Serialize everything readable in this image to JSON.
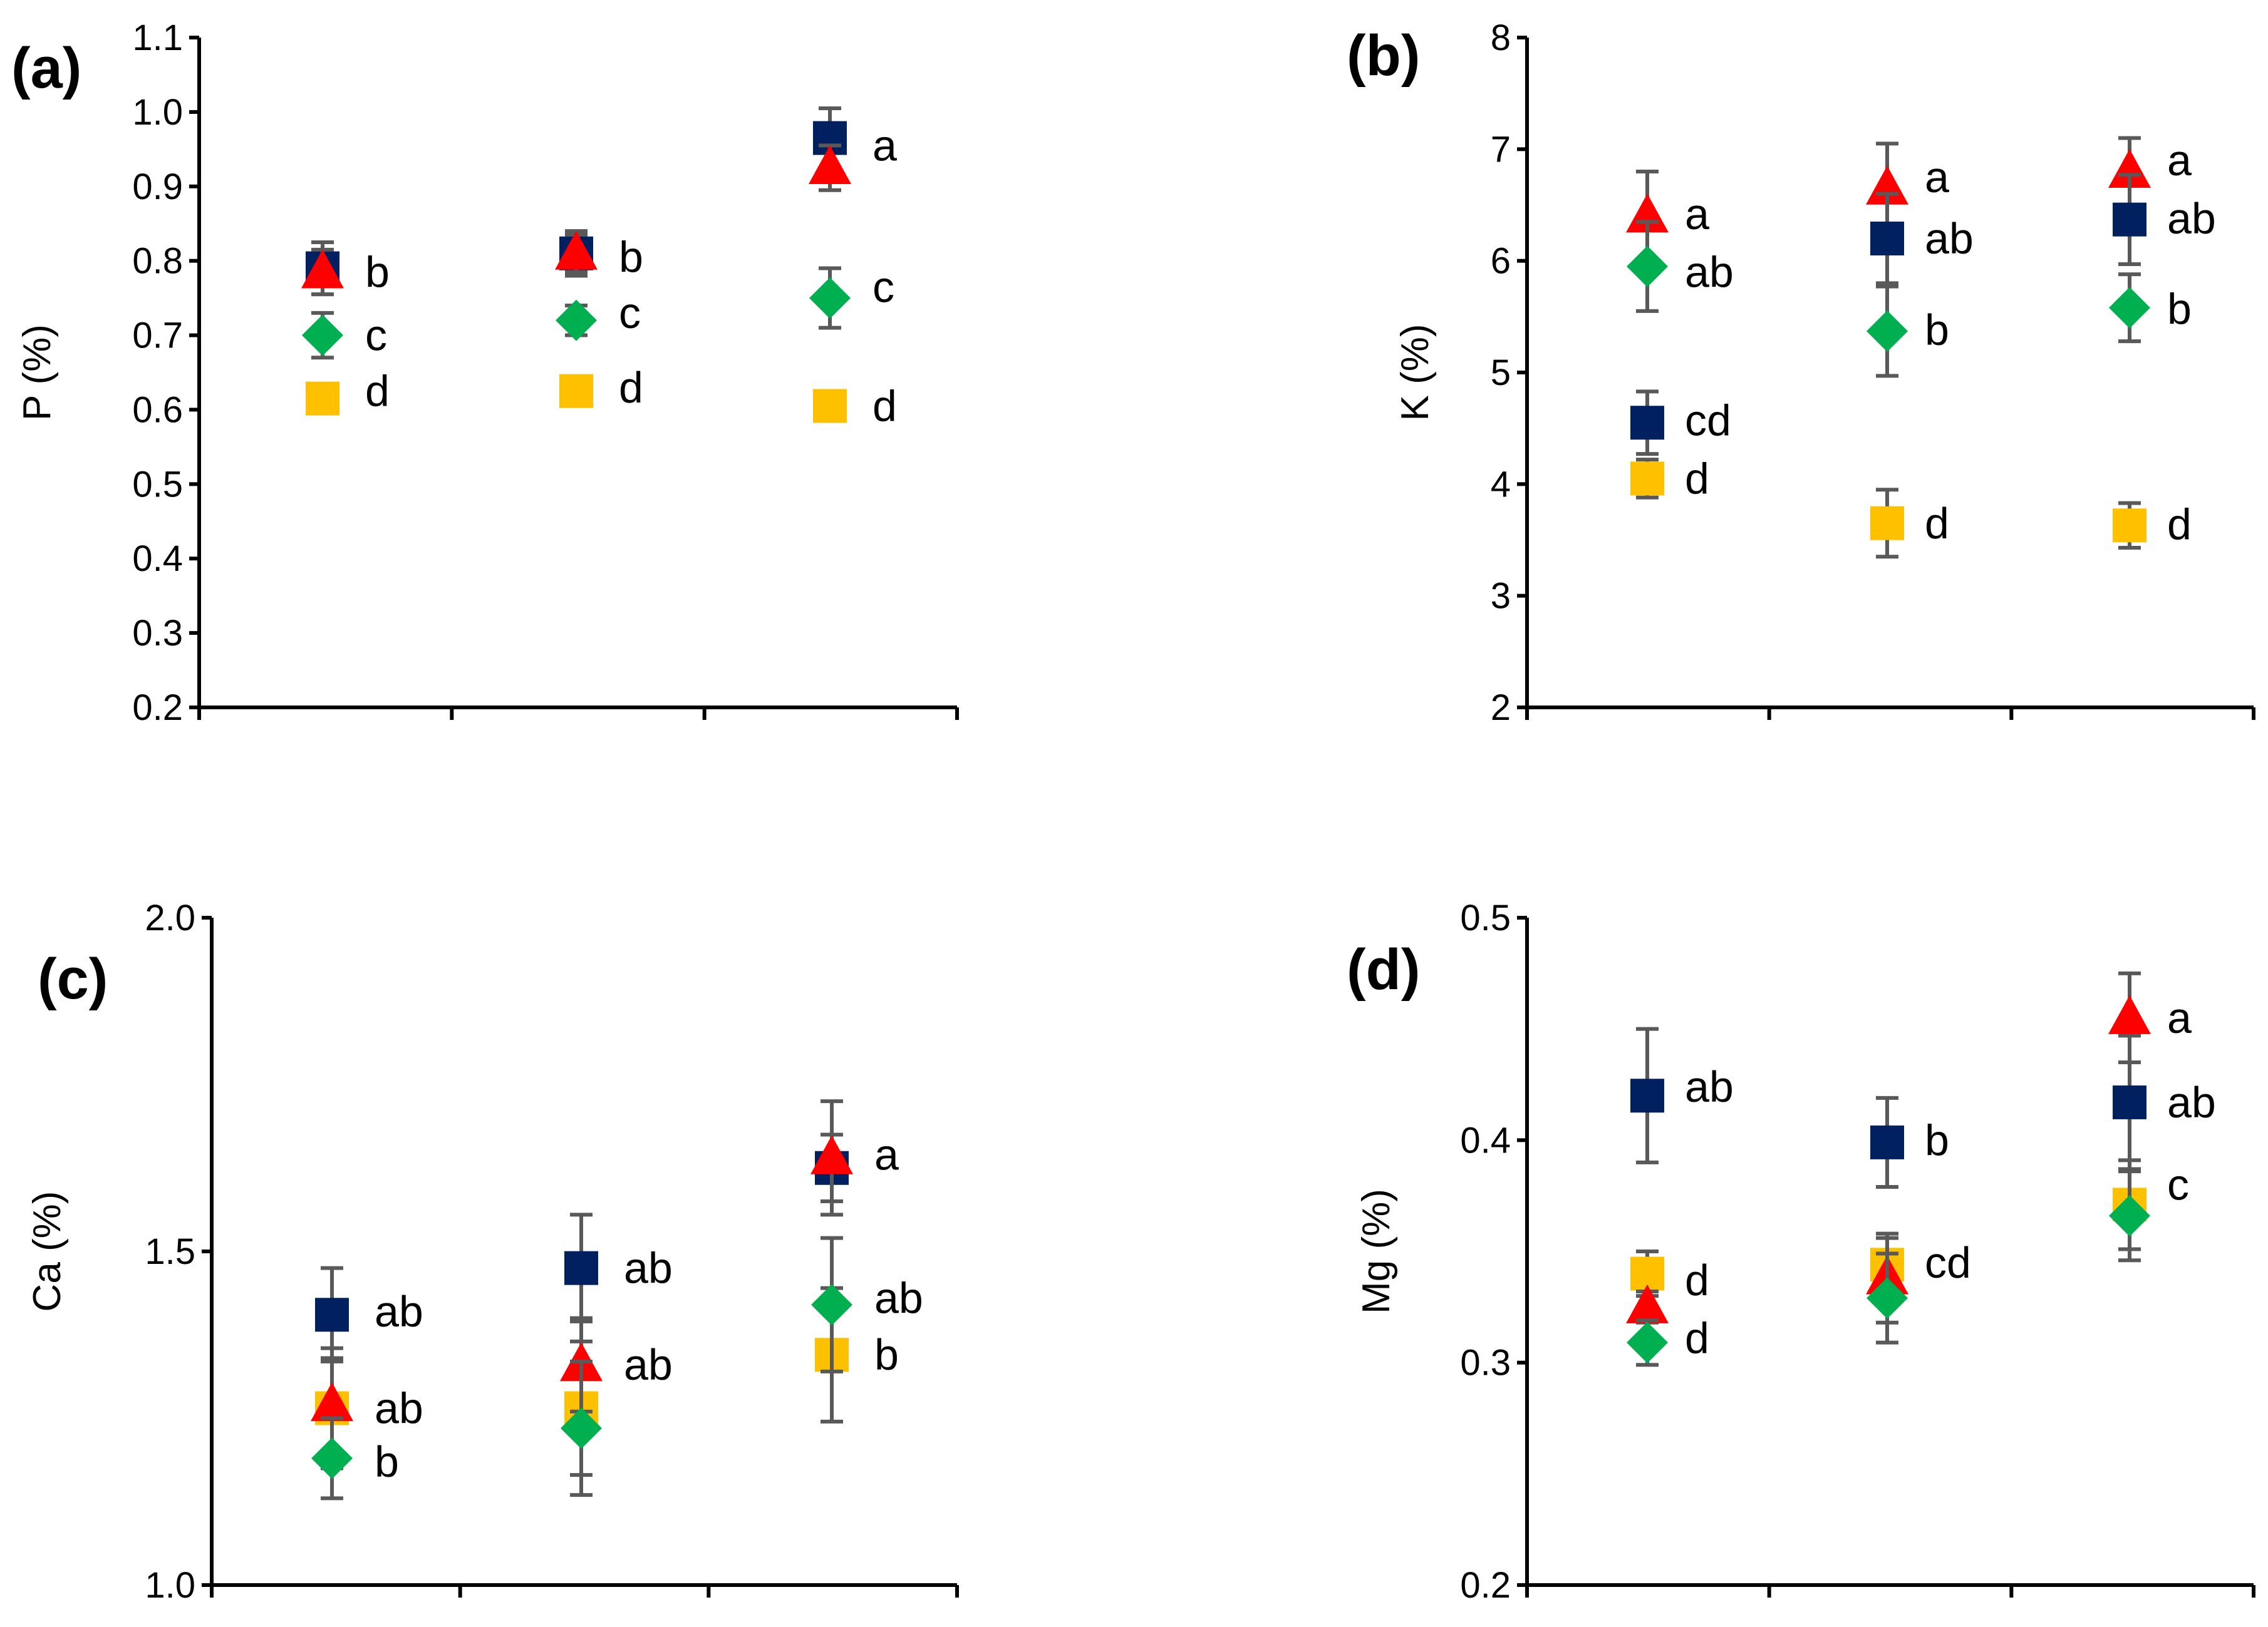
{
  "colors": {
    "navy": "#002060",
    "red": "#FF0000",
    "green": "#00B050",
    "yellow": "#FFC000",
    "errorbar": "#595959"
  },
  "chart_data": [
    {
      "type": "scatter",
      "panel_label": "(a)",
      "ylabel": "P (%)",
      "xlabel": "",
      "ylim": [
        0.2,
        1.1
      ],
      "yticks": [
        0.2,
        0.3,
        0.4,
        0.5,
        0.6,
        0.7,
        0.8,
        0.9,
        1.0,
        1.1
      ],
      "ytick_labels": [
        "0.2",
        "0.3",
        "0.4",
        "0.5",
        "0.6",
        "0.7",
        "0.8",
        "0.9",
        "1.0",
        "1.1"
      ],
      "groups": 3,
      "series": [
        {
          "name": "navy-square",
          "marker": "square",
          "color": "#002060",
          "values": [
            0.79,
            0.81,
            0.965
          ],
          "errors": [
            0.035,
            0.03,
            0.04
          ]
        },
        {
          "name": "red-triangle",
          "marker": "triangle",
          "color": "#FF0000",
          "values": [
            0.785,
            0.81,
            0.925
          ],
          "errors": [
            0.03,
            0.025,
            0.03
          ]
        },
        {
          "name": "green-diamond",
          "marker": "diamond",
          "color": "#00B050",
          "values": [
            0.7,
            0.72,
            0.75
          ],
          "errors": [
            0.03,
            0.02,
            0.04
          ]
        },
        {
          "name": "yellow-square",
          "marker": "square",
          "color": "#FFC000",
          "values": [
            0.615,
            0.625,
            0.605
          ],
          "errors": [
            0,
            0,
            0
          ]
        }
      ],
      "letters": [
        {
          "text": "b",
          "group": 0,
          "y": 0.785
        },
        {
          "text": "c",
          "group": 0,
          "y": 0.7
        },
        {
          "text": "d",
          "group": 0,
          "y": 0.625
        },
        {
          "text": "b",
          "group": 1,
          "y": 0.805
        },
        {
          "text": "c",
          "group": 1,
          "y": 0.73
        },
        {
          "text": "d",
          "group": 1,
          "y": 0.63
        },
        {
          "text": "a",
          "group": 2,
          "y": 0.955
        },
        {
          "text": "c",
          "group": 2,
          "y": 0.765
        },
        {
          "text": "d",
          "group": 2,
          "y": 0.605
        }
      ]
    },
    {
      "type": "scatter",
      "panel_label": "(b)",
      "ylabel": "K (%)",
      "xlabel": "",
      "ylim": [
        2,
        8
      ],
      "yticks": [
        2,
        3,
        4,
        5,
        6,
        7,
        8
      ],
      "ytick_labels": [
        "2",
        "3",
        "4",
        "5",
        "6",
        "7",
        "8"
      ],
      "groups": 3,
      "series": [
        {
          "name": "red-triangle",
          "marker": "triangle",
          "color": "#FF0000",
          "values": [
            6.4,
            6.65,
            6.8
          ],
          "errors": [
            0.4,
            0.4,
            0.3
          ]
        },
        {
          "name": "navy-square",
          "marker": "square",
          "color": "#002060",
          "values": [
            4.55,
            6.2,
            6.37
          ],
          "errors": [
            0.28,
            0.4,
            0.4
          ]
        },
        {
          "name": "green-diamond",
          "marker": "diamond",
          "color": "#00B050",
          "values": [
            5.95,
            5.37,
            5.58
          ],
          "errors": [
            0.4,
            0.4,
            0.3
          ]
        },
        {
          "name": "yellow-square",
          "marker": "square",
          "color": "#FFC000",
          "values": [
            4.05,
            3.65,
            3.63
          ],
          "errors": [
            0.17,
            0.3,
            0.2
          ]
        }
      ],
      "letters": [
        {
          "text": "a",
          "group": 0,
          "y": 6.42
        },
        {
          "text": "ab",
          "group": 0,
          "y": 5.9
        },
        {
          "text": "cd",
          "group": 0,
          "y": 4.57
        },
        {
          "text": "d",
          "group": 0,
          "y": 4.05
        },
        {
          "text": "a",
          "group": 1,
          "y": 6.75
        },
        {
          "text": "ab",
          "group": 1,
          "y": 6.2
        },
        {
          "text": "b",
          "group": 1,
          "y": 5.38
        },
        {
          "text": "d",
          "group": 1,
          "y": 3.65
        },
        {
          "text": "a",
          "group": 2,
          "y": 6.9
        },
        {
          "text": "ab",
          "group": 2,
          "y": 6.38
        },
        {
          "text": "b",
          "group": 2,
          "y": 5.57
        },
        {
          "text": "d",
          "group": 2,
          "y": 3.64
        }
      ]
    },
    {
      "type": "scatter",
      "panel_label": "(c)",
      "ylabel": "Ca (%)",
      "xlabel": "",
      "ylim": [
        1.0,
        2.0
      ],
      "yticks": [
        1.0,
        1.5,
        2.0
      ],
      "ytick_labels": [
        "1.0",
        "1.5",
        "2.0"
      ],
      "groups": 3,
      "series": [
        {
          "name": "navy-square",
          "marker": "square",
          "color": "#002060",
          "values": [
            1.405,
            1.475,
            1.625
          ],
          "errors": [
            0.07,
            0.08,
            0.05
          ]
        },
        {
          "name": "yellow-square",
          "marker": "square",
          "color": "#FFC000",
          "values": [
            1.265,
            1.265,
            1.345
          ],
          "errors": [
            0.09,
            0.1,
            0.1
          ]
        },
        {
          "name": "red-triangle",
          "marker": "triangle",
          "color": "#FF0000",
          "values": [
            1.27,
            1.33,
            1.64
          ],
          "errors": [
            0.07,
            0.07,
            0.085
          ]
        },
        {
          "name": "green-diamond",
          "marker": "diamond",
          "color": "#00B050",
          "values": [
            1.19,
            1.235,
            1.42
          ],
          "errors": [
            0.06,
            0.1,
            0.1
          ]
        }
      ],
      "letters": [
        {
          "text": "ab",
          "group": 0,
          "y": 1.41
        },
        {
          "text": "ab",
          "group": 0,
          "y": 1.265
        },
        {
          "text": "b",
          "group": 0,
          "y": 1.185
        },
        {
          "text": "ab",
          "group": 1,
          "y": 1.475
        },
        {
          "text": "ab",
          "group": 1,
          "y": 1.33
        },
        {
          "text": "a",
          "group": 2,
          "y": 1.645
        },
        {
          "text": "ab",
          "group": 2,
          "y": 1.43
        },
        {
          "text": "b",
          "group": 2,
          "y": 1.345
        }
      ]
    },
    {
      "type": "scatter",
      "panel_label": "(d)",
      "ylabel": "Mg (%)",
      "xlabel": "",
      "ylim": [
        0.2,
        0.5
      ],
      "yticks": [
        0.2,
        0.3,
        0.4,
        0.5
      ],
      "ytick_labels": [
        "0.2",
        "0.3",
        "0.4",
        "0.5"
      ],
      "groups": 3,
      "series": [
        {
          "name": "navy-square",
          "marker": "square",
          "color": "#002060",
          "values": [
            0.42,
            0.399,
            0.417
          ],
          "errors": [
            0.03,
            0.02,
            0.03
          ]
        },
        {
          "name": "yellow-square",
          "marker": "square",
          "color": "#FFC000",
          "values": [
            0.34,
            0.344,
            0.371
          ],
          "errors": [
            0.01,
            0.012,
            0.02
          ]
        },
        {
          "name": "red-triangle",
          "marker": "triangle",
          "color": "#FF0000",
          "values": [
            0.325,
            0.338,
            0.455
          ],
          "errors": [
            0.007,
            0.02,
            0.02
          ]
        },
        {
          "name": "green-diamond",
          "marker": "diamond",
          "color": "#00B050",
          "values": [
            0.309,
            0.329,
            0.366
          ],
          "errors": [
            0.01,
            0.02,
            0.02
          ]
        }
      ],
      "letters": [
        {
          "text": "ab",
          "group": 0,
          "y": 0.424
        },
        {
          "text": "d",
          "group": 0,
          "y": 0.337
        },
        {
          "text": "d",
          "group": 0,
          "y": 0.311
        },
        {
          "text": "b",
          "group": 1,
          "y": 0.4
        },
        {
          "text": "cd",
          "group": 1,
          "y": 0.345
        },
        {
          "text": "a",
          "group": 2,
          "y": 0.455
        },
        {
          "text": "ab",
          "group": 2,
          "y": 0.417
        },
        {
          "text": "c",
          "group": 2,
          "y": 0.38
        }
      ]
    }
  ]
}
